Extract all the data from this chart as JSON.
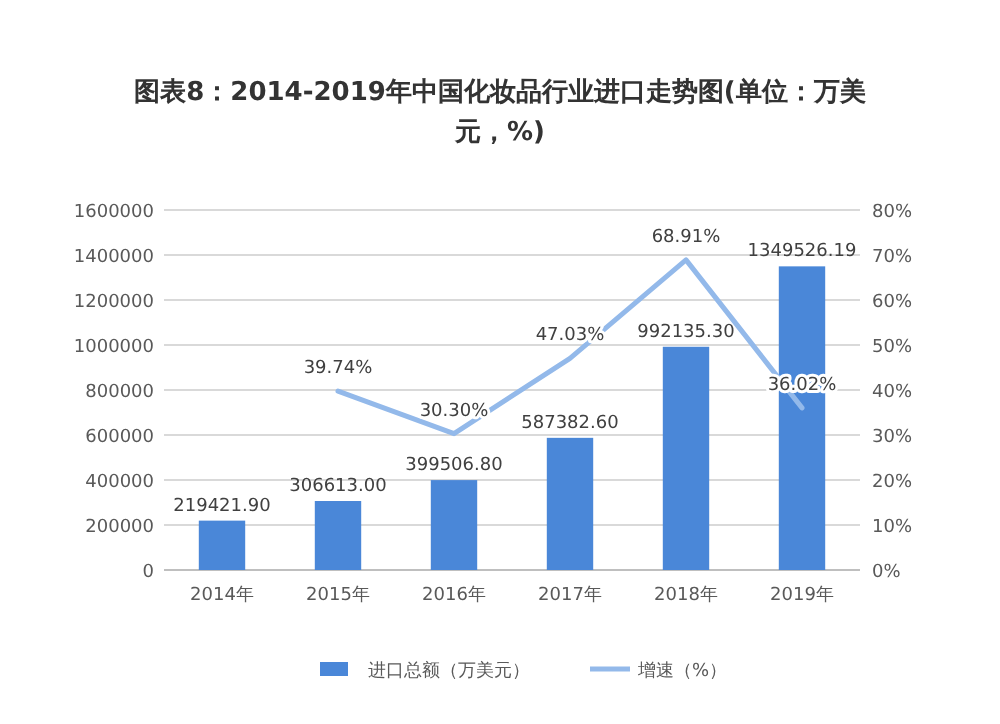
{
  "chart_data": {
    "type": "bar",
    "title": "图表8：2014-2019年中国化妆品行业进口走势图(单位：万美元，%)",
    "categories": [
      "2014年",
      "2015年",
      "2016年",
      "2017年",
      "2018年",
      "2019年"
    ],
    "series": [
      {
        "name": "进口总额（万美元）",
        "color": "#4a87d8",
        "values": [
          219421.9,
          306613.0,
          399506.8,
          587382.6,
          992135.3,
          1349526.19
        ],
        "value_labels": [
          "219421.90",
          "306613.00",
          "399506.80",
          "587382.60",
          "992135.30",
          "1349526.19"
        ]
      },
      {
        "name": "增速（%）",
        "type": "line",
        "axis": "y2",
        "color": "#93b9ea",
        "values": [
          null,
          39.74,
          30.3,
          47.03,
          68.91,
          36.02
        ],
        "value_labels": [
          null,
          "39.74%",
          "30.30%",
          "47.03%",
          "68.91%",
          "36.02%"
        ]
      }
    ],
    "ylim": [
      0,
      1600000
    ],
    "yticks": [
      0,
      200000,
      400000,
      600000,
      800000,
      1000000,
      1200000,
      1400000,
      1600000
    ],
    "y2lim": [
      0,
      80
    ],
    "y2ticks": [
      {
        "value": 0,
        "label": "0%"
      },
      {
        "value": 10,
        "label": "10%"
      },
      {
        "value": 20,
        "label": "20%"
      },
      {
        "value": 30,
        "label": "30%"
      },
      {
        "value": 40,
        "label": "40%"
      },
      {
        "value": 50,
        "label": "50%"
      },
      {
        "value": 60,
        "label": "60%"
      },
      {
        "value": 70,
        "label": "70%"
      },
      {
        "value": 80,
        "label": "80%"
      }
    ],
    "grid": "y",
    "legend": "bottom",
    "marker": "none",
    "line_style": "solid"
  }
}
